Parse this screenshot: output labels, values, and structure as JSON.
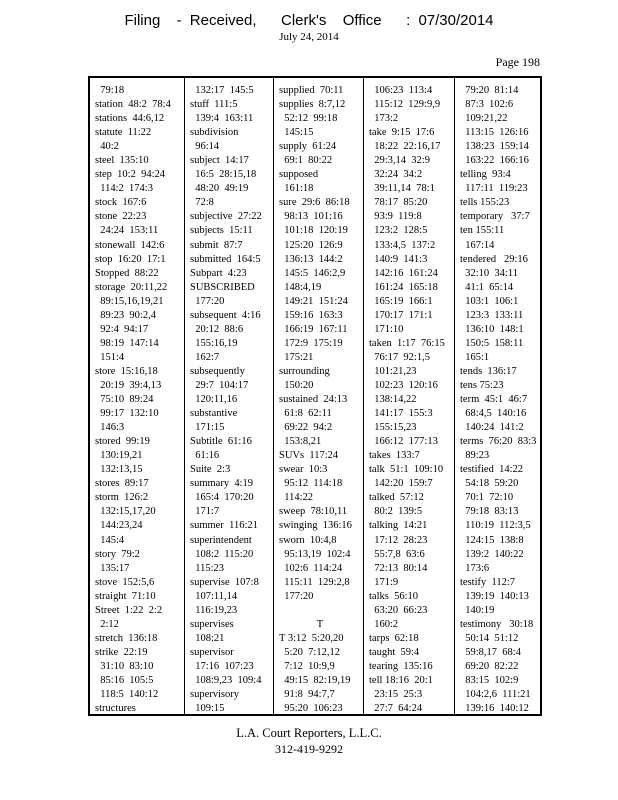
{
  "header": {
    "title": "Filing  - Received,   Clerk's  Office   : 07/30/2014",
    "date": "July 24, 2014",
    "page_label": "Page 198"
  },
  "index": {
    "columns": [
      [
        "  79:18",
        "station  48:2  78:4",
        "stations  44:6,12",
        "statute  11:22",
        "  40:2",
        "steel  135:10",
        "step  10:2  94:24",
        "  114:2  174:3",
        "stock  167:6",
        "stone  22:23",
        "  24:24  153:11",
        "stonewall  142:6",
        "stop  16:20  17:1",
        "Stopped  88:22",
        "storage  20:11,22",
        "  89:15,16,19,21",
        "  89:23  90:2,4",
        "  92:4  94:17",
        "  98:19  147:14",
        "  151:4",
        "store  15:16,18",
        "  20:19  39:4,13",
        "  75:10  89:24",
        "  99:17  132:10",
        "  146:3",
        "stored  99:19",
        "  130:19,21",
        "  132:13,15",
        "stores  89:17",
        "storm  126:2",
        "  132:15,17,20",
        "  144:23,24",
        "  145:4",
        "story  79:2",
        "  135:17",
        "stove  152:5,6",
        "straight  71:10",
        "Street  1:22  2:2",
        "  2:12",
        "stretch  136:18",
        "strike  22:19",
        "  31:10  83:10",
        "  85:16  105:5",
        "  118:5  140:12",
        "structures"
      ],
      [
        "  132:17  145:5",
        "stuff  111:5",
        "  139:4  163:11",
        "subdivision",
        "  96:14",
        "subject  14:17",
        "  16:5  28:15,18",
        "  48:20  49:19",
        "  72:8",
        "subjective  27:22",
        "subjects  15:11",
        "submit  87:7",
        "submitted  164:5",
        "Subpart  4:23",
        "SUBSCRIBED",
        "  177:20",
        "subsequent  4:16",
        "  20:12  88:6",
        "  155:16,19",
        "  162:7",
        "subsequently",
        "  29:7  104:17",
        "  120:11,16",
        "substantive",
        "  171:15",
        "Subtitle  61:16",
        "  61:16",
        "Suite  2:3",
        "summary  4:19",
        "  165:4  170:20",
        "  171:7",
        "summer  116:21",
        "superintendent",
        "  108:2  115:20",
        "  115:23",
        "supervise  107:8",
        "  107:11,14",
        "  116:19,23",
        "supervises",
        "  108:21",
        "supervisor",
        "  17:16  107:23",
        "  108:9,23  109:4",
        "supervisory",
        "  109:15"
      ],
      [
        "supplied  70:11",
        "supplies  8:7,12",
        "  52:12  99:18",
        "  145:15",
        "supply  61:24",
        "  69:1  80:22",
        "supposed",
        "  161:18",
        "sure  29:6  86:18",
        "  98:13  101:16",
        "  101:18  120:19",
        "  125:20  126:9",
        "  136:13  144:2",
        "  145:5  146:2,9",
        "  148:4,19",
        "  149:21  151:24",
        "  159:16  163:3",
        "  166:19  167:11",
        "  172:9  175:19",
        "  175:21",
        "surrounding",
        "  150:20",
        "sustained  24:13",
        "  61:8  62:11",
        "  69:22  94:2",
        "  153:8,21",
        "SUVs  117:24",
        "swear  10:3",
        "  95:12  114:18",
        "  114:22",
        "sweep  78:10,11",
        "swinging  136:16",
        "sworn  10:4,8",
        "  95:13,19  102:4",
        "  102:6  114:24",
        "  115:11  129:2,8",
        "  177:20",
        "",
        {
          "center": "T"
        },
        "T 3:12  5:20,20",
        "  5:20  7:12,12",
        "  7:12  10:9,9",
        "  49:15  82:19,19",
        "  91:8  94:7,7",
        "  95:20  106:23"
      ],
      [
        "  106:23  113:4",
        "  115:12  129:9,9",
        "  173:2",
        "take  9:15  17:6",
        "  18:22  22:16,17",
        "  29:3,14  32:9",
        "  32:24  34:2",
        "  39:11,14  78:1",
        "  78:17  85:20",
        "  93:9  119:8",
        "  123:2  128:5",
        "  133:4,5  137:2",
        "  140:9  141:3",
        "  142:16  161:24",
        "  161:24  165:18",
        "  165:19  166:1",
        "  170:17  171:1",
        "  171:10",
        "taken  1:17  76:15",
        "  76:17  92:1,5",
        "  101:21,23",
        "  102:23  120:16",
        "  138:14,22",
        "  141:17  155:3",
        "  155:15,23",
        "  166:12  177:13",
        "takes  133:7",
        "talk  51:1  109:10",
        "  142:20  159:7",
        "talked  57:12",
        "  80:2  139:5",
        "talking  14:21",
        "  17:12  28:23",
        "  55:7,8  63:6",
        "  72:13  80:14",
        "  171:9",
        "talks  56:10",
        "  63:20  66:23",
        "  160:2",
        "tarps  62:18",
        "taught  59:4",
        "tearing  135:16",
        "tell 18:16  20:1",
        "  23:15  25:3",
        "  27:7  64:24"
      ],
      [
        "  79:20  81:14",
        "  87:3  102:6",
        "  109:21,22",
        "  113:15  126:16",
        "  138:23  159:14",
        "  163:22  166:16",
        "telling  93:4",
        "  117:11  119:23",
        "tells 155:23",
        "temporary   37:7",
        "ten 155:11",
        "  167:14",
        "tendered   29:16",
        "  32:10  34:11",
        "  41:1  65:14",
        "  103:1  106:1",
        "  123:3  133:11",
        "  136:10  148:1",
        "  150:5  158:11",
        "  165:1",
        "tends  136:17",
        "tens 75:23",
        "term  45:1  46:7",
        "  68:4,5  140:16",
        "  140:24  141:2",
        "terms  76:20  83:3",
        "  89:23",
        "testified  14:22",
        "  54:18  59:20",
        "  70:1  72:10",
        "  79:18  83:13",
        "  110:19  112:3,5",
        "  124:15  138:8",
        "  139:2  140:22",
        "  173:6",
        "testify  112:7",
        "  139:19  140:13",
        "  140:19",
        "testimony   30:18",
        "  50:14  51:12",
        "  59:8,17  68:4",
        "  69:20  82:22",
        "  83:15  102:9",
        "  104:2,6  111:21",
        "  139:16  140:12"
      ]
    ]
  },
  "footer": {
    "company": "L.A. Court Reporters, L.L.C.",
    "phone": "312-419-9292"
  }
}
